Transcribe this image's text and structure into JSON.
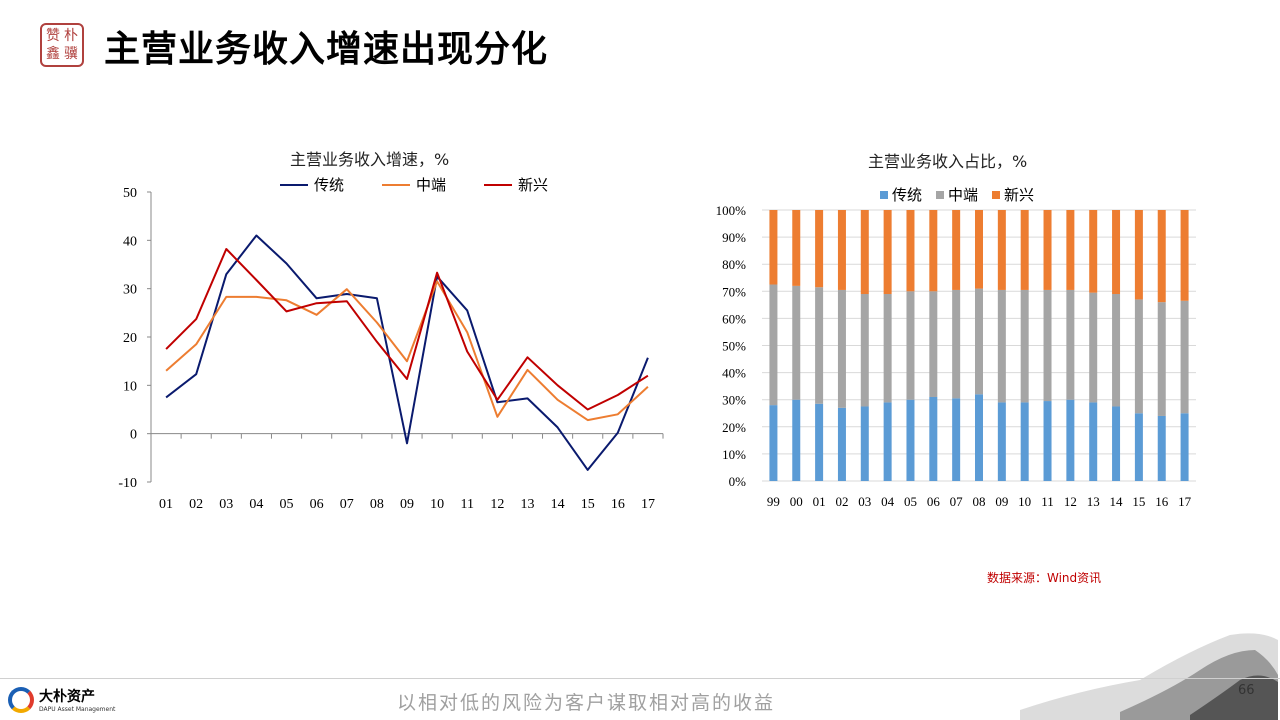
{
  "header": {
    "seal_chars": [
      "赞",
      "朴",
      "鑫",
      "骥"
    ],
    "title": "主营业务收入增速出现分化"
  },
  "chart_data": [
    {
      "type": "line",
      "title": "主营业务收入增速，%",
      "categories": [
        "01",
        "02",
        "03",
        "04",
        "05",
        "06",
        "07",
        "08",
        "09",
        "10",
        "11",
        "12",
        "13",
        "14",
        "15",
        "16",
        "17"
      ],
      "yticks": [
        "50",
        "40",
        "30",
        "20",
        "10",
        "0",
        "-10"
      ],
      "ylim": [
        -10,
        50
      ],
      "legend_position": "top",
      "series": [
        {
          "name": "传统",
          "color": "#0a1a6e",
          "values": [
            7.5,
            12.3,
            33.0,
            41.0,
            35.2,
            28.0,
            28.9,
            28.0,
            -2.0,
            32.5,
            25.5,
            6.5,
            7.3,
            1.3,
            -7.5,
            0.2,
            15.7
          ]
        },
        {
          "name": "中端",
          "color": "#ed7d31",
          "values": [
            13.0,
            18.5,
            28.3,
            28.3,
            27.6,
            24.6,
            29.9,
            23.0,
            15.0,
            31.5,
            21.0,
            3.5,
            13.2,
            7.0,
            2.8,
            4.0,
            9.7
          ]
        },
        {
          "name": "新兴",
          "color": "#c00000",
          "values": [
            17.5,
            23.7,
            38.2,
            31.8,
            25.3,
            27.0,
            27.4,
            19.0,
            11.3,
            33.3,
            17.0,
            7.0,
            15.8,
            10.0,
            5.0,
            8.0,
            12.0
          ]
        }
      ]
    },
    {
      "type": "bar",
      "stacked": true,
      "title": "主营业务收入占比，%",
      "categories": [
        "99",
        "00",
        "01",
        "02",
        "03",
        "04",
        "05",
        "06",
        "07",
        "08",
        "09",
        "10",
        "11",
        "12",
        "13",
        "14",
        "15",
        "16",
        "17"
      ],
      "yticks": [
        "100%",
        "90%",
        "80%",
        "70%",
        "60%",
        "50%",
        "40%",
        "30%",
        "20%",
        "10%",
        "0%"
      ],
      "ylim": [
        0,
        100
      ],
      "legend_position": "top",
      "series": [
        {
          "name": "传统",
          "color": "#5b9bd5",
          "values": [
            28,
            30,
            28.5,
            27,
            27.5,
            29,
            30,
            31,
            30.5,
            32,
            29,
            29,
            29.5,
            30,
            29,
            27.5,
            25,
            24,
            25
          ]
        },
        {
          "name": "中端",
          "color": "#a5a5a5",
          "values": [
            44.5,
            42,
            43,
            43.5,
            41.5,
            40,
            40,
            39,
            40,
            39,
            41.5,
            41.5,
            41,
            40.5,
            40.5,
            41.5,
            42,
            42,
            41.5
          ]
        },
        {
          "name": "新兴",
          "color": "#ed7d31",
          "values": [
            27.5,
            28,
            28.5,
            29.5,
            31,
            31,
            30,
            30,
            29.5,
            29,
            29.5,
            29.5,
            29.5,
            29.5,
            30.5,
            31,
            33,
            34,
            33.5
          ]
        }
      ]
    }
  ],
  "source": "数据来源：Wind资讯",
  "footer": {
    "company_cn": "大朴资产",
    "company_en": "DAPU Asset Management",
    "slogan": "以相对低的风险为客户谋取相对高的收益",
    "page_number": "66"
  }
}
